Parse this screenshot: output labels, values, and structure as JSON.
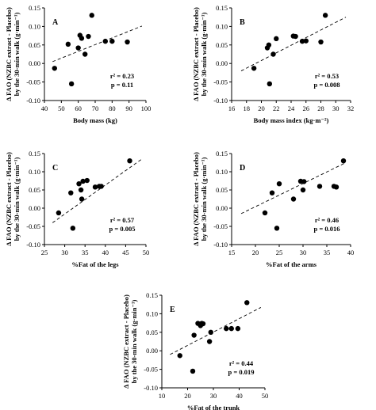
{
  "chart_data": [
    {
      "type": "scatter",
      "panel": "A",
      "xlabel": "Body mass (kg)",
      "ylabel": [
        "Δ FAO (NZBC extract - Placebo)",
        "by the 30-min walk (g·min⁻¹)"
      ],
      "xlim": [
        40,
        100
      ],
      "ylim": [
        -0.1,
        0.15
      ],
      "xticks": [
        40,
        50,
        60,
        70,
        80,
        90,
        100
      ],
      "yticks": [
        -0.1,
        -0.05,
        0.0,
        0.05,
        0.1,
        0.15
      ],
      "xtick_labels": [
        "40",
        "50",
        "60",
        "70",
        "80",
        "90",
        "100"
      ],
      "ytick_labels": [
        "-0.10",
        "-0.05",
        "0.00",
        "0.05",
        "0.10",
        "0.15"
      ],
      "r2_label": "r² = 0.23",
      "p_label": "p = 0.11",
      "x": [
        46,
        54,
        56,
        60,
        61,
        62,
        64,
        66,
        68,
        76,
        80,
        89
      ],
      "y": [
        -0.013,
        0.052,
        -0.055,
        0.042,
        0.076,
        0.068,
        0.025,
        0.073,
        0.13,
        0.06,
        0.06,
        0.058
      ],
      "trend": [
        0.005,
        0.101
      ]
    },
    {
      "type": "scatter",
      "panel": "B",
      "xlabel": "Body mass index (kg·m⁻²)",
      "ylabel": [
        "Δ FAO (NZBC extract - Placebo)",
        "by the 30-min walk (g·min⁻¹)"
      ],
      "xlim": [
        16,
        32
      ],
      "ylim": [
        -0.1,
        0.15
      ],
      "xticks": [
        16,
        18,
        20,
        22,
        24,
        26,
        28,
        30,
        32
      ],
      "yticks": [
        -0.1,
        -0.05,
        0.0,
        0.05,
        0.1,
        0.15
      ],
      "xtick_labels": [
        "16",
        "18",
        "20",
        "22",
        "24",
        "26",
        "28",
        "30",
        "32"
      ],
      "ytick_labels": [
        "-0.10",
        "-0.05",
        "0.00",
        "0.05",
        "0.10",
        "0.15"
      ],
      "r2_label": "r² = 0.53",
      "p_label": "p = 0.008",
      "x": [
        19.0,
        20.8,
        21.0,
        21.1,
        21.6,
        22.0,
        24.3,
        24.6,
        25.5,
        26.0,
        28.0,
        28.6
      ],
      "y": [
        -0.013,
        0.042,
        0.05,
        -0.055,
        0.025,
        0.067,
        0.074,
        0.073,
        0.06,
        0.061,
        0.058,
        0.13
      ],
      "trend": [
        -0.02,
        0.125
      ]
    },
    {
      "type": "scatter",
      "panel": "C",
      "xlabel": "%Fat of the legs",
      "ylabel": [
        "Δ FAO (NZBC extract - Placebo)",
        "by the 30-min walk (g·min⁻¹)"
      ],
      "xlim": [
        25,
        50
      ],
      "ylim": [
        -0.1,
        0.15
      ],
      "xticks": [
        25,
        30,
        35,
        40,
        45,
        50
      ],
      "yticks": [
        -0.1,
        -0.05,
        0.0,
        0.05,
        0.1,
        0.15
      ],
      "xtick_labels": [
        "25",
        "30",
        "35",
        "40",
        "45",
        "50"
      ],
      "ytick_labels": [
        "-0.10",
        "-0.05",
        "0.00",
        "0.05",
        "0.10",
        "0.15"
      ],
      "r2_label": "r² = 0.57",
      "p_label": "p = 0.005",
      "x": [
        28.5,
        31.5,
        32,
        33.5,
        34,
        34.2,
        34.5,
        35.5,
        37.5,
        38.5,
        39,
        46
      ],
      "y": [
        -0.013,
        0.042,
        -0.055,
        0.067,
        0.05,
        0.025,
        0.074,
        0.076,
        0.058,
        0.06,
        0.06,
        0.13
      ],
      "trend": [
        -0.04,
        0.135
      ]
    },
    {
      "type": "scatter",
      "panel": "D",
      "xlabel": "%Fat of the arms",
      "ylabel": [
        "Δ FAO (NZBC extract - Placebo)",
        "by the 30-min walk (g·min⁻¹)"
      ],
      "xlim": [
        15,
        40
      ],
      "ylim": [
        -0.1,
        0.15
      ],
      "xticks": [
        15,
        20,
        25,
        30,
        35,
        40
      ],
      "yticks": [
        -0.1,
        -0.05,
        0.0,
        0.05,
        0.1,
        0.15
      ],
      "xtick_labels": [
        "15",
        "20",
        "25",
        "30",
        "35",
        "40"
      ],
      "ytick_labels": [
        "-0.10",
        "-0.05",
        "0.00",
        "0.05",
        "0.10",
        "0.15"
      ],
      "r2_label": "r² = 0.46",
      "p_label": "p = 0.016",
      "x": [
        22,
        23.5,
        24.5,
        25,
        28,
        29.5,
        30,
        30.2,
        33.5,
        36.5,
        37,
        38.5
      ],
      "y": [
        -0.013,
        0.042,
        -0.055,
        0.067,
        0.025,
        0.074,
        0.05,
        0.073,
        0.06,
        0.06,
        0.058,
        0.13
      ],
      "trend": [
        -0.015,
        0.125
      ]
    },
    {
      "type": "scatter",
      "panel": "E",
      "xlabel": "%Fat of the trunk",
      "ylabel": [
        "Δ FAO (NZBC extract - Placebo)",
        "by the 30-min walk (g·min⁻¹)"
      ],
      "xlim": [
        10,
        50
      ],
      "ylim": [
        -0.1,
        0.15
      ],
      "xticks": [
        10,
        20,
        30,
        40,
        50
      ],
      "yticks": [
        -0.1,
        -0.05,
        0.0,
        0.05,
        0.1,
        0.15
      ],
      "xtick_labels": [
        "10",
        "20",
        "30",
        "40",
        "50"
      ],
      "ytick_labels": [
        "-0.10",
        "-0.05",
        "0.00",
        "0.05",
        "0.10",
        "0.15"
      ],
      "r2_label": "r² = 0.44",
      "p_label": "p = 0.019",
      "x": [
        17,
        22,
        22.5,
        24,
        25,
        25.5,
        26,
        28.5,
        29,
        35,
        37,
        39.5,
        43
      ],
      "y": [
        -0.013,
        -0.055,
        0.042,
        0.074,
        0.068,
        0.074,
        0.073,
        0.025,
        0.05,
        0.06,
        0.06,
        0.06,
        0.13
      ],
      "trend": [
        -0.01,
        0.117
      ]
    }
  ]
}
